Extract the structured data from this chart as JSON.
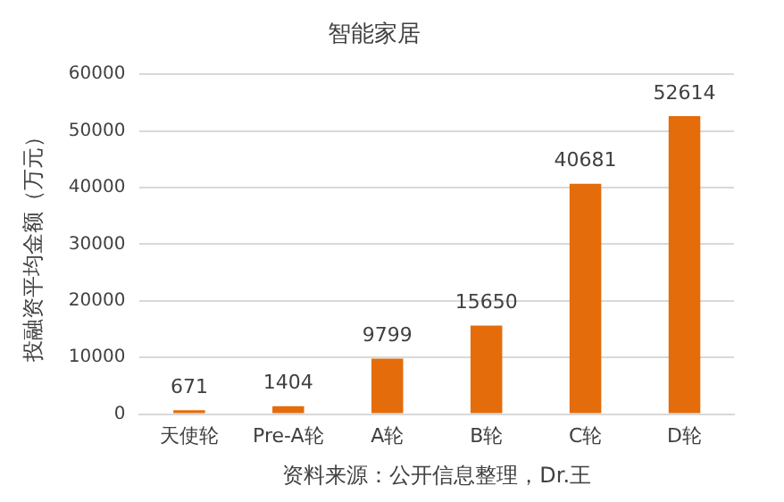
{
  "chart_data": {
    "type": "bar",
    "title": "智能家居",
    "ylabel": "投融资平均金额（万元）",
    "categories": [
      "天使轮",
      "Pre-A轮",
      "A轮",
      "B轮",
      "C轮",
      "D轮"
    ],
    "values": [
      671,
      1404,
      9799,
      15650,
      40681,
      52614
    ],
    "color": "#e46c0a",
    "ylim": [
      0,
      60000
    ],
    "yticks": [
      0,
      10000,
      20000,
      30000,
      40000,
      50000,
      60000
    ],
    "grid": "y",
    "data_labels": true,
    "legend": false,
    "annotations": [
      "资料来源：公开信息整理，Dr.王"
    ]
  }
}
